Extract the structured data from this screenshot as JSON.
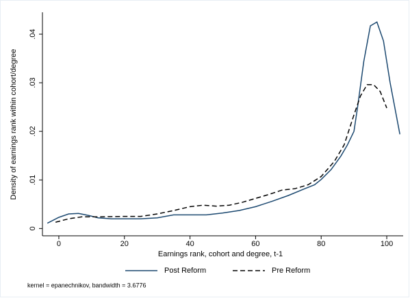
{
  "chart_data": {
    "type": "line",
    "x_label": "Earnings rank, cohort and degree, t-1",
    "y_label": "Density of earnings rank within cohort/degree",
    "note": "kernel = epanechnikov, bandwidth = 3.6776",
    "xlim": [
      -5,
      105
    ],
    "xticks": [
      0,
      20,
      40,
      60,
      80,
      100
    ],
    "ylim": [
      -0.0015,
      0.0445
    ],
    "yticks": [
      0,
      {
        "value": 0.01,
        "label": ".01"
      },
      {
        "value": 0.02,
        "label": ".02"
      },
      {
        "value": 0.03,
        "label": ".03"
      },
      {
        "value": 0.04,
        "label": ".04"
      }
    ],
    "grid": false,
    "legend": "bottom",
    "series": [
      {
        "name": "Post Reform",
        "color": "#1a476f",
        "dash": "solid",
        "x": [
          -3.5,
          0,
          3,
          6,
          9,
          12,
          16,
          20,
          25,
          30,
          35,
          40,
          45,
          50,
          55,
          60,
          65,
          70,
          75,
          78,
          80,
          83,
          86,
          88,
          90,
          91,
          93,
          95,
          97,
          99,
          101,
          104
        ],
        "values": [
          0.0011,
          0.0023,
          0.003,
          0.0031,
          0.0027,
          0.0022,
          0.002,
          0.002,
          0.002,
          0.0022,
          0.0028,
          0.0028,
          0.0028,
          0.0032,
          0.0037,
          0.0045,
          0.0056,
          0.0068,
          0.0082,
          0.009,
          0.0101,
          0.0121,
          0.0149,
          0.0172,
          0.02,
          0.0245,
          0.0344,
          0.0417,
          0.0425,
          0.0386,
          0.0301,
          0.0194
        ]
      },
      {
        "name": "Pre Reform",
        "color": "#000000",
        "dash": "dashed",
        "x": [
          -1,
          3,
          7,
          12,
          20,
          25,
          30,
          35,
          40,
          44,
          48,
          52,
          56,
          60,
          64,
          68,
          72,
          76,
          80,
          84,
          87,
          90,
          92,
          94,
          96,
          98,
          100
        ],
        "values": [
          0.0013,
          0.002,
          0.0024,
          0.0024,
          0.0025,
          0.0025,
          0.003,
          0.0037,
          0.0045,
          0.0048,
          0.0046,
          0.0048,
          0.0054,
          0.0062,
          0.007,
          0.0079,
          0.0082,
          0.009,
          0.0107,
          0.0138,
          0.0172,
          0.0234,
          0.0273,
          0.0296,
          0.0296,
          0.0282,
          0.0248
        ]
      }
    ]
  }
}
